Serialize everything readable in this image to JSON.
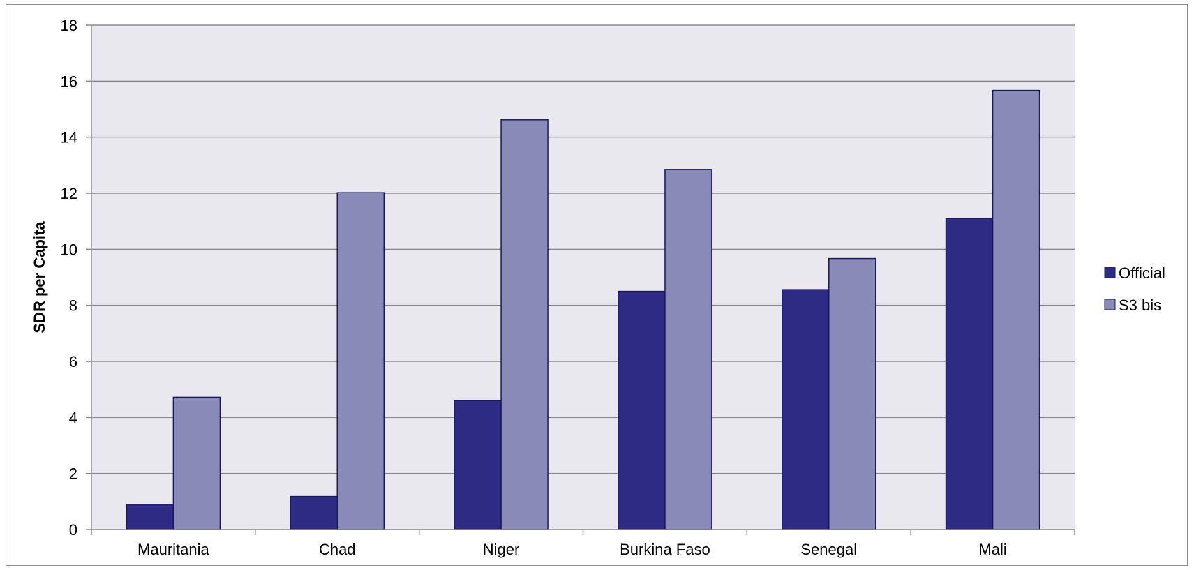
{
  "chart_data": {
    "type": "bar",
    "categories": [
      "Mauritania",
      "Chad",
      "Niger",
      "Burkina Faso",
      "Senegal",
      "Mali"
    ],
    "series": [
      {
        "name": "Official",
        "color": "#2e2b84",
        "values": [
          0.9,
          1.18,
          4.6,
          8.5,
          8.56,
          11.1
        ]
      },
      {
        "name": "S3 bis",
        "color": "#8a8ab8",
        "values": [
          4.72,
          12.02,
          14.62,
          12.85,
          9.67,
          15.67
        ]
      }
    ],
    "title": "",
    "xlabel": "",
    "ylabel": "SDR per Capita",
    "ylim": [
      0,
      18
    ],
    "yticks": [
      0,
      2,
      4,
      6,
      8,
      10,
      12,
      14,
      16,
      18
    ],
    "grid": true,
    "legend_position": "right",
    "colors": {
      "plot_background": "#e8e8ee",
      "gridline": "#8c8c8c",
      "bar_border": "#1a1a5e"
    }
  }
}
